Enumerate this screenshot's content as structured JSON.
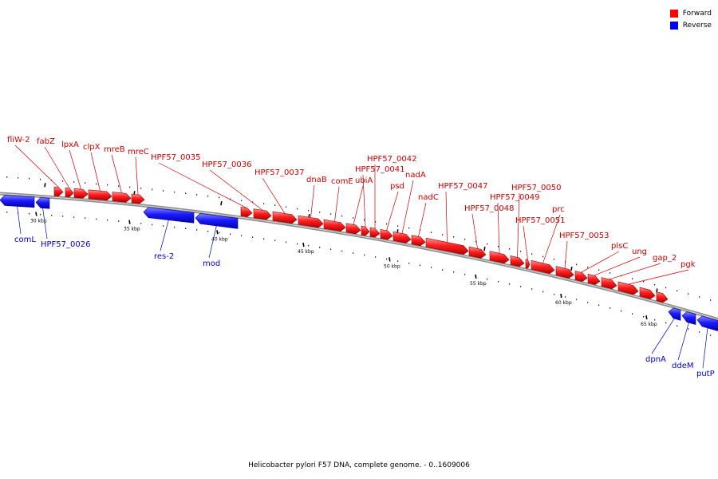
{
  "legend": {
    "forward_label": "Forward",
    "forward_color": "#ff0000",
    "reverse_label": "Reverse",
    "reverse_color": "#0000ff"
  },
  "caption": "Helicobacter pylori F57 DNA, complete genome. - 0..1609006",
  "scale": {
    "unit_labels": [
      "30 kbp",
      "35 kbp",
      "40 kbp",
      "45 kbp",
      "50 kbp",
      "55 kbp",
      "60 kbp",
      "65 kbp"
    ]
  },
  "genes": [
    {
      "name": "fliW-2",
      "strand": "forward"
    },
    {
      "name": "fabZ",
      "strand": "forward"
    },
    {
      "name": "lpxA",
      "strand": "forward"
    },
    {
      "name": "clpX",
      "strand": "forward"
    },
    {
      "name": "mreB",
      "strand": "forward"
    },
    {
      "name": "mreC",
      "strand": "forward"
    },
    {
      "name": "HPF57_0035",
      "strand": "forward"
    },
    {
      "name": "HPF57_0036",
      "strand": "forward"
    },
    {
      "name": "HPF57_0037",
      "strand": "forward"
    },
    {
      "name": "dnaB",
      "strand": "forward"
    },
    {
      "name": "comE",
      "strand": "forward"
    },
    {
      "name": "ubiA",
      "strand": "forward"
    },
    {
      "name": "HPF57_0041",
      "strand": "forward"
    },
    {
      "name": "HPF57_0042",
      "strand": "forward"
    },
    {
      "name": "psd",
      "strand": "forward"
    },
    {
      "name": "nadA",
      "strand": "forward"
    },
    {
      "name": "nadC",
      "strand": "forward"
    },
    {
      "name": "HPF57_0047",
      "strand": "forward"
    },
    {
      "name": "HPF57_0048",
      "strand": "forward"
    },
    {
      "name": "HPF57_0049",
      "strand": "forward"
    },
    {
      "name": "HPF57_0050",
      "strand": "forward"
    },
    {
      "name": "HPF57_0051",
      "strand": "forward"
    },
    {
      "name": "prc",
      "strand": "forward"
    },
    {
      "name": "HPF57_0053",
      "strand": "forward"
    },
    {
      "name": "plsC",
      "strand": "forward"
    },
    {
      "name": "ung",
      "strand": "forward"
    },
    {
      "name": "gap_2",
      "strand": "forward"
    },
    {
      "name": "pgk",
      "strand": "forward"
    },
    {
      "name": "comL",
      "strand": "reverse"
    },
    {
      "name": "HPF57_0026",
      "strand": "reverse"
    },
    {
      "name": "res-2",
      "strand": "reverse"
    },
    {
      "name": "mod",
      "strand": "reverse"
    },
    {
      "name": "dpnA",
      "strand": "reverse"
    },
    {
      "name": "ddeM",
      "strand": "reverse"
    },
    {
      "name": "putP",
      "strand": "reverse"
    }
  ]
}
